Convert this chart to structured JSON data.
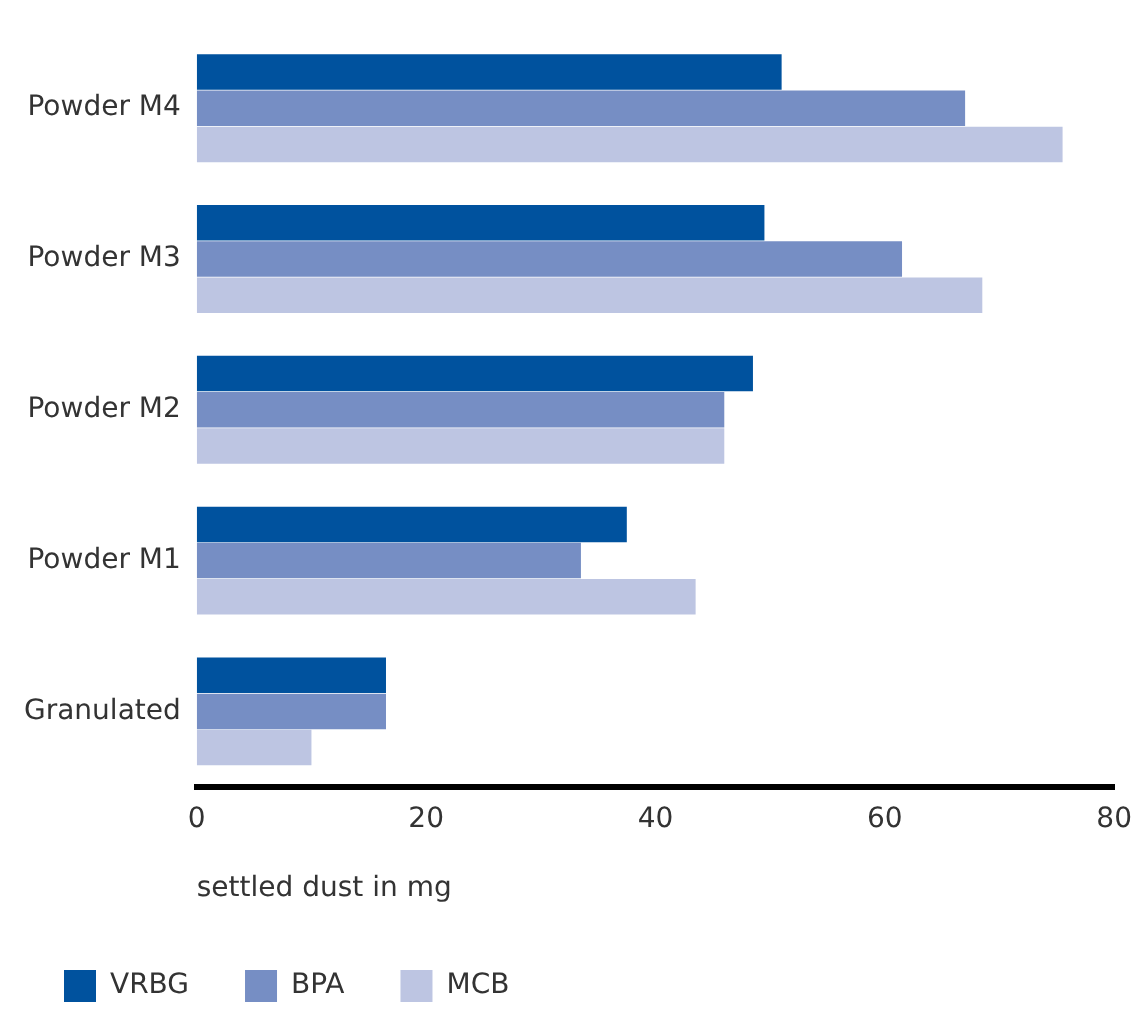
{
  "chart_data": {
    "type": "bar",
    "orientation": "horizontal",
    "xlabel": "settled dust in mg",
    "categories": [
      "Powder M4",
      "Powder M3",
      "Powder M2",
      "Powder M1",
      "Granulated"
    ],
    "series": [
      {
        "name": "VRBG",
        "color": "#00529e",
        "values": [
          51,
          49.5,
          48.5,
          37.5,
          16.5
        ]
      },
      {
        "name": "BPA",
        "color": "#768ec4",
        "values": [
          67,
          61.5,
          46,
          33.5,
          16.5
        ]
      },
      {
        "name": "MCB",
        "color": "#bdc5e2",
        "values": [
          75.5,
          68.5,
          46,
          43.5,
          10
        ]
      }
    ],
    "xlim": [
      0,
      80
    ],
    "xticks": [
      0,
      20,
      40,
      60,
      80
    ],
    "grid": false,
    "legend": "bottom left"
  }
}
